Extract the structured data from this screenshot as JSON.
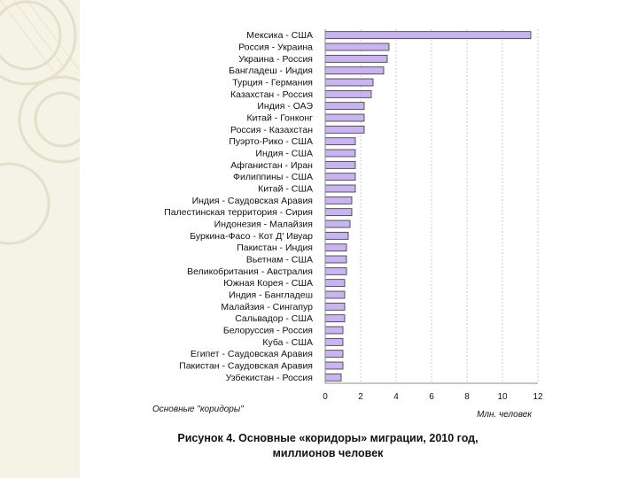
{
  "chart_data": {
    "type": "bar",
    "orientation": "horizontal",
    "categories": [
      "Мексика - США",
      "Россия - Украина",
      "Украина - Россия",
      "Бангладеш - Индия",
      "Турция - Германия",
      "Казахстан - Россия",
      "Индия - ОАЭ",
      "Китай - Гонконг",
      "Россия - Казахстан",
      "Пуэрто-Рико - США",
      "Индия - США",
      "Афганистан - Иран",
      "Филиппины - США",
      "Китай - США",
      "Индия - Саудовская Аравия",
      "Палестинская территория - Сирия",
      "Индонезия - Малайзия",
      "Буркина-Фасо - Кот Д' Ивуар",
      "Пакистан - Индия",
      "Вьетнам - США",
      "Великобритания - Австралия",
      "Южная Корея - США",
      "Индия - Бангладеш",
      "Малайзия - Сингапур",
      "Сальвадор - США",
      "Белоруссия - Россия",
      "Куба - США",
      "Египет - Саудовская Аравия",
      "Пакистан - Саудовская Аравия",
      "Узбекистан - Россия"
    ],
    "values": [
      11.6,
      3.6,
      3.5,
      3.3,
      2.7,
      2.6,
      2.2,
      2.2,
      2.2,
      1.7,
      1.7,
      1.7,
      1.7,
      1.7,
      1.5,
      1.5,
      1.4,
      1.3,
      1.2,
      1.2,
      1.2,
      1.1,
      1.1,
      1.1,
      1.1,
      1.0,
      1.0,
      1.0,
      1.0,
      0.9
    ],
    "xlim": [
      0,
      12
    ],
    "xticks": [
      "0",
      "2",
      "4",
      "6",
      "8",
      "10",
      "12"
    ],
    "xlabel": "Млн. человек",
    "legend_label": "Основные \"коридоры\"",
    "bar_color": "#c8b4f0",
    "grid": true
  },
  "caption": {
    "line1": "Рисунок 4. Основные «коридоры» миграции, 2010 год,",
    "line2": "миллионов человек"
  }
}
